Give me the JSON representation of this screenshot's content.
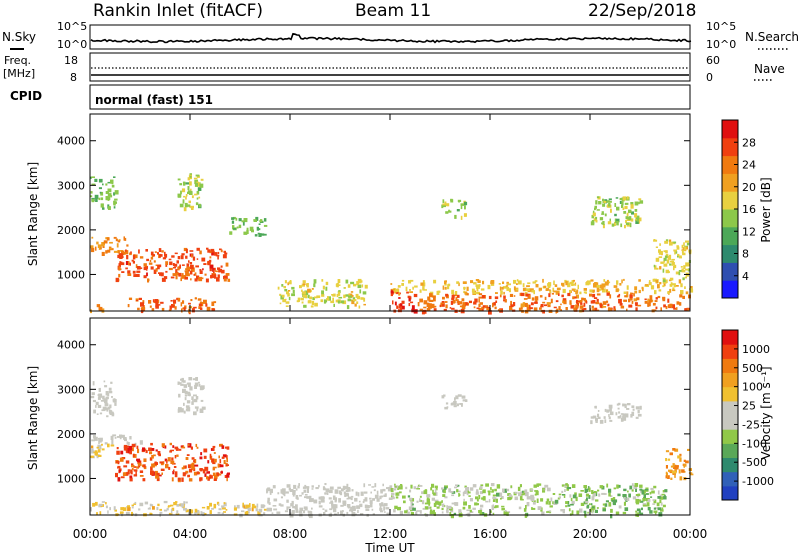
{
  "header": {
    "station": "Rankin Inlet (fitACF)",
    "beam": "Beam 11",
    "date": "22/Sep/2018"
  },
  "strip_nsky": {
    "left_label": "N.Sky",
    "right_label": "N.Search",
    "left_ticks": [
      "10^5",
      "10^0"
    ],
    "right_ticks": [
      "10^5",
      "10^0"
    ]
  },
  "strip_freq": {
    "left_label_1": "Freq.",
    "left_label_2": "[MHz]",
    "left_ticks": [
      "18",
      "8"
    ],
    "right_label": "Nave",
    "right_ticks": [
      "60",
      "0"
    ]
  },
  "strip_cpid": {
    "label": "CPID",
    "mode": "normal (fast) 151"
  },
  "panels": {
    "y_label": "Slant Range [km]",
    "x_label": "Time UT",
    "x_ticks": [
      "00:00",
      "04:00",
      "08:00",
      "12:00",
      "16:00",
      "20:00",
      "00:00"
    ],
    "y_ticks": [
      "1000",
      "2000",
      "3000",
      "4000"
    ]
  },
  "colorbar_power": {
    "label": "Power [dB]",
    "ticks": [
      "4",
      "8",
      "12",
      "16",
      "20",
      "24",
      "28"
    ],
    "colors": [
      "#1a1aff",
      "#2f4fb0",
      "#2e8a6e",
      "#4ca858",
      "#8cc84a",
      "#e8d040",
      "#f0a020",
      "#f07a10",
      "#f04010",
      "#e01010"
    ]
  },
  "colorbar_velocity": {
    "label": "Velocity [m s⁻¹]",
    "ticks": [
      "1000",
      "500",
      "100",
      "25",
      "-25",
      "-100",
      "-500",
      "-1000"
    ],
    "colors": [
      "#2040c0",
      "#3060b8",
      "#2e8a6e",
      "#5aa858",
      "#90c848",
      "#c8c8c0",
      "#c8c8c0",
      "#f0c030",
      "#f0a020",
      "#f07a10",
      "#f04010",
      "#e01010"
    ]
  },
  "chart_data": [
    {
      "type": "heatmap",
      "title": "Rankin Inlet (fitACF) Beam 11 22/Sep/2018",
      "xlabel": "Time UT",
      "ylabel": "Slant Range [km]",
      "xlim": [
        "00:00",
        "24:00"
      ],
      "ylim": [
        180,
        4600
      ],
      "value_label": "Power [dB]",
      "value_range": [
        0,
        30
      ],
      "regions": [
        {
          "t0": 0.0,
          "t1": 0.5,
          "r0": 200,
          "r1": 400,
          "value": 22
        },
        {
          "t0": 0.0,
          "t1": 1.5,
          "r0": 1500,
          "r1": 1900,
          "value": 22
        },
        {
          "t0": 0.0,
          "t1": 1.0,
          "r0": 2500,
          "r1": 3200,
          "value": 12
        },
        {
          "t0": 1.0,
          "t1": 5.5,
          "r0": 900,
          "r1": 1600,
          "value": 26
        },
        {
          "t0": 1.5,
          "t1": 5.0,
          "r0": 200,
          "r1": 500,
          "value": 24
        },
        {
          "t0": 3.5,
          "t1": 4.5,
          "r0": 2500,
          "r1": 3300,
          "value": 14
        },
        {
          "t0": 5.5,
          "t1": 7.0,
          "r0": 1900,
          "r1": 2300,
          "value": 12
        },
        {
          "t0": 7.5,
          "t1": 11.0,
          "r0": 300,
          "r1": 900,
          "value": 16
        },
        {
          "t0": 12.0,
          "t1": 13.0,
          "r0": 200,
          "r1": 700,
          "value": 28
        },
        {
          "t0": 12.0,
          "t1": 24.0,
          "r0": 600,
          "r1": 900,
          "value": 18
        },
        {
          "t0": 13.0,
          "t1": 24.0,
          "r0": 200,
          "r1": 600,
          "value": 24
        },
        {
          "t0": 14.0,
          "t1": 15.0,
          "r0": 2300,
          "r1": 2700,
          "value": 14
        },
        {
          "t0": 20.0,
          "t1": 22.0,
          "r0": 2100,
          "r1": 2800,
          "value": 14
        },
        {
          "t0": 22.5,
          "t1": 24.0,
          "r0": 900,
          "r1": 1800,
          "value": 16
        }
      ]
    },
    {
      "type": "heatmap",
      "title": "Rankin Inlet (fitACF) Beam 11 22/Sep/2018",
      "xlabel": "Time UT",
      "ylabel": "Slant Range [km]",
      "xlim": [
        "00:00",
        "24:00"
      ],
      "ylim": [
        180,
        4600
      ],
      "value_label": "Velocity [m s^-1]",
      "value_range": [
        -1000,
        1000
      ],
      "regions": [
        {
          "t0": 0.0,
          "t1": 1.0,
          "r0": 2400,
          "r1": 3200,
          "value": 0
        },
        {
          "t0": 0.0,
          "t1": 2.0,
          "r0": 1800,
          "r1": 2000,
          "value": 0
        },
        {
          "t0": 0.0,
          "t1": 1.0,
          "r0": 1500,
          "r1": 1800,
          "value": 200
        },
        {
          "t0": 1.0,
          "t1": 5.5,
          "r0": 1000,
          "r1": 1800,
          "value": 800
        },
        {
          "t0": 0.0,
          "t1": 7.0,
          "r0": 200,
          "r1": 500,
          "value": 200
        },
        {
          "t0": 3.5,
          "t1": 4.5,
          "r0": 2500,
          "r1": 3300,
          "value": 0
        },
        {
          "t0": 7.0,
          "t1": 12.0,
          "r0": 200,
          "r1": 900,
          "value": 0
        },
        {
          "t0": 12.0,
          "t1": 19.0,
          "r0": 200,
          "r1": 900,
          "value": -200
        },
        {
          "t0": 19.0,
          "t1": 23.0,
          "r0": 200,
          "r1": 900,
          "value": -300
        },
        {
          "t0": 14.0,
          "t1": 15.0,
          "r0": 2600,
          "r1": 2900,
          "value": 0
        },
        {
          "t0": 20.0,
          "t1": 22.0,
          "r0": 2300,
          "r1": 2700,
          "value": 0
        },
        {
          "t0": 23.0,
          "t1": 24.0,
          "r0": 1000,
          "r1": 1700,
          "value": 500
        }
      ]
    }
  ]
}
